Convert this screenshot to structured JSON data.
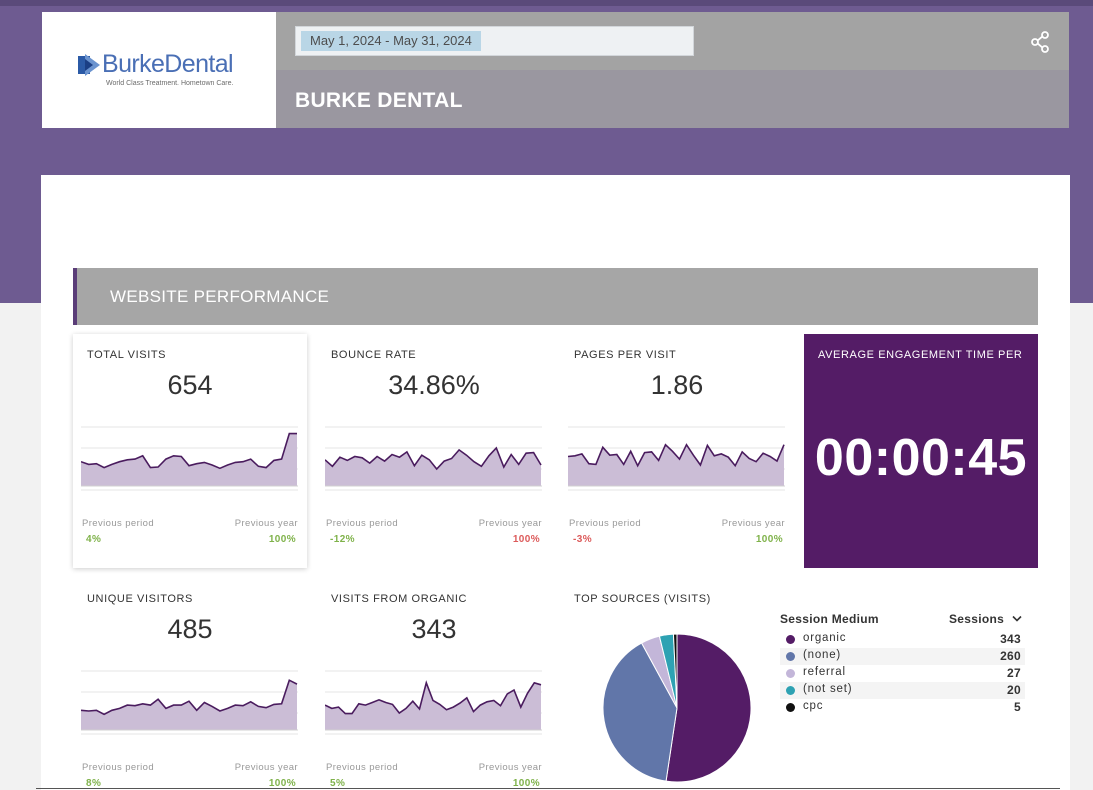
{
  "header": {
    "logo_text": "BurkeDental",
    "logo_tagline": "World Class Treatment. Hometown Care.",
    "date_range": "May 1, 2024 - May 31, 2024",
    "title": "BURKE DENTAL",
    "share_icon": "share-icon"
  },
  "section": {
    "title": "WEBSITE PERFORMANCE"
  },
  "colors": {
    "brand_purple": "#6e5b91",
    "dark_purple": "#541c66",
    "spark_fill": "#cbbdd6",
    "spark_line": "#4a1c5e",
    "positive": "#7fb24a",
    "negative": "#dc5a5a"
  },
  "labels": {
    "previous_period": "Previous period",
    "previous_year": "Previous year"
  },
  "metrics": {
    "total_visits": {
      "title": "TOTAL VISITS",
      "value": "654",
      "prev": "4%",
      "year": "100%",
      "spark": [
        37,
        33,
        34,
        28,
        33,
        37,
        40,
        41,
        46,
        28,
        29,
        41,
        46,
        45,
        31,
        34,
        36,
        32,
        27,
        32,
        36,
        37,
        41,
        30,
        28,
        39,
        41,
        80,
        80
      ]
    },
    "bounce_rate": {
      "title": "BOUNCE RATE",
      "value": "34.86%",
      "prev": "-12%",
      "year": "100%",
      "spark": [
        40,
        30,
        44,
        39,
        45,
        43,
        35,
        45,
        38,
        48,
        44,
        52,
        31,
        47,
        40,
        26,
        38,
        42,
        55,
        47,
        37,
        30,
        46,
        58,
        29,
        48,
        33,
        50,
        51,
        32
      ]
    },
    "pages_per_visit": {
      "title": "PAGES PER VISIT",
      "value": "1.86",
      "prev": "-3%",
      "year": "100%",
      "spark": [
        45,
        46,
        49,
        34,
        33,
        59,
        47,
        48,
        33,
        53,
        31,
        51,
        52,
        39,
        63,
        53,
        41,
        63,
        47,
        32,
        62,
        46,
        49,
        44,
        31,
        52,
        42,
        37,
        50,
        45,
        38,
        63
      ]
    },
    "average_engagement": {
      "title": "AVERAGE ENGAGEMENT TIME PER",
      "value": "00:00:45"
    },
    "unique_visitors": {
      "title": "UNIQUE VISITORS",
      "value": "485",
      "prev": "8%",
      "year": "100%",
      "spark": [
        30,
        29,
        30,
        24,
        30,
        33,
        38,
        37,
        40,
        38,
        47,
        33,
        38,
        38,
        44,
        30,
        42,
        36,
        29,
        33,
        38,
        37,
        43,
        36,
        34,
        39,
        40,
        76,
        70
      ]
    },
    "visits_from_organic": {
      "title": "VISITS FROM ORGANIC",
      "value": "343",
      "prev": "5%",
      "year": "100%",
      "spark": [
        38,
        33,
        35,
        25,
        25,
        40,
        38,
        42,
        46,
        42,
        39,
        26,
        33,
        44,
        32,
        72,
        45,
        39,
        31,
        35,
        41,
        49,
        28,
        38,
        43,
        45,
        37,
        55,
        61,
        35,
        56,
        72,
        69
      ]
    }
  },
  "top_sources": {
    "title": "TOP SOURCES (VISITS)",
    "col_medium": "Session Medium",
    "col_sessions": "Sessions",
    "rows": [
      {
        "name": "organic",
        "value": "343",
        "color": "#541c66"
      },
      {
        "name": "(none)",
        "value": "260",
        "color": "#6176a9"
      },
      {
        "name": "referral",
        "value": "27",
        "color": "#c3b6d9"
      },
      {
        "name": "(not set)",
        "value": "20",
        "color": "#2ea2b3"
      },
      {
        "name": "cpc",
        "value": "5",
        "color": "#111111"
      }
    ]
  },
  "chart_data": {
    "type": "pie",
    "title": "TOP SOURCES (VISITS)",
    "categories": [
      "organic",
      "(none)",
      "referral",
      "(not set)",
      "cpc"
    ],
    "values": [
      343,
      260,
      27,
      20,
      5
    ]
  }
}
